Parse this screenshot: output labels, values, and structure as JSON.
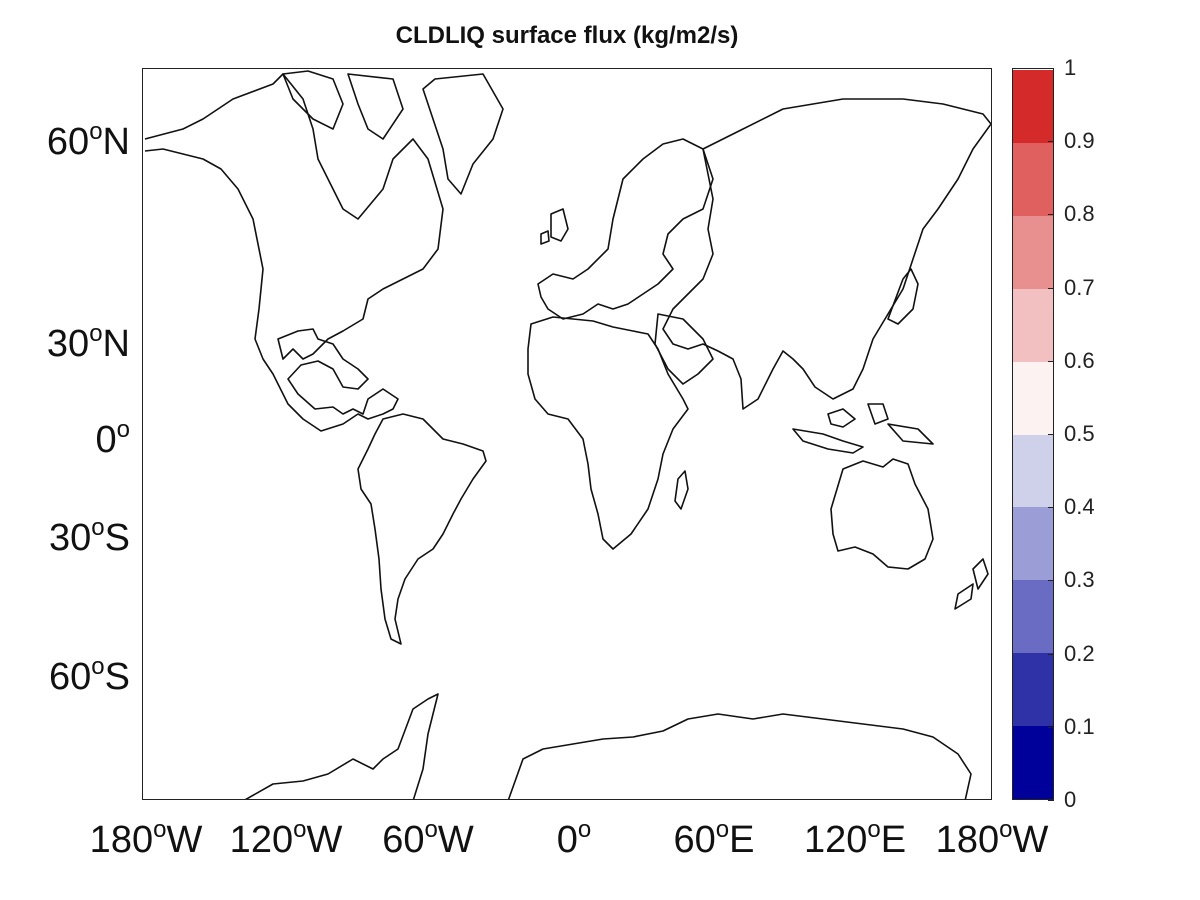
{
  "title": "CLDLIQ surface flux (kg/m2/s)",
  "latitude_labels": [
    {
      "deg": "60",
      "hemi": "N"
    },
    {
      "deg": "30",
      "hemi": "N"
    },
    {
      "deg": "0",
      "hemi": ""
    },
    {
      "deg": "30",
      "hemi": "S"
    },
    {
      "deg": "60",
      "hemi": "S"
    }
  ],
  "longitude_labels": [
    {
      "deg": "180",
      "hemi": "W"
    },
    {
      "deg": "120",
      "hemi": "W"
    },
    {
      "deg": "60",
      "hemi": "W"
    },
    {
      "deg": "0",
      "hemi": ""
    },
    {
      "deg": "60",
      "hemi": "E"
    },
    {
      "deg": "120",
      "hemi": "E"
    },
    {
      "deg": "180",
      "hemi": "W"
    }
  ],
  "colorbar": {
    "ticks": [
      "0",
      "0.1",
      "0.2",
      "0.3",
      "0.4",
      "0.5",
      "0.6",
      "0.7",
      "0.8",
      "0.9",
      "1"
    ],
    "colors": [
      "#00009a",
      "#2e32a6",
      "#6a6cc4",
      "#9b9dd6",
      "#cfd0ea",
      "#fdf2f2",
      "#f2c0c0",
      "#e89090",
      "#e06060",
      "#d42a2a"
    ]
  },
  "map_fill": "#ffffff"
}
